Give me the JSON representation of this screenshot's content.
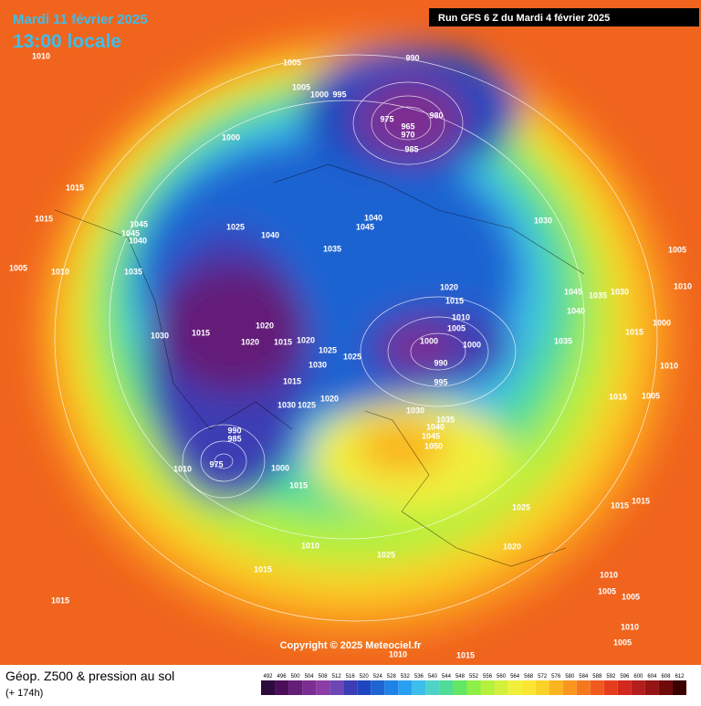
{
  "header": {
    "date": "Mardi 11 février 2025",
    "time": "13:00 locale",
    "run": "Run GFS 6 Z du Mardi 4 février 2025"
  },
  "footer": {
    "title": "Géop. Z500 & pression au sol",
    "lead": "(+ 174h)",
    "copyright": "Copyright © 2025 Meteociel.fr"
  },
  "pressure_labels": [
    1010,
    1005,
    990,
    1005,
    1000,
    995,
    975,
    965,
    980,
    970,
    985,
    1000,
    1015,
    1015,
    1045,
    1045,
    1040,
    1005,
    1010,
    1035,
    1025,
    1040,
    1035,
    1040,
    1045,
    1030,
    1005,
    1020,
    1015,
    1010,
    1005,
    1000,
    1000,
    990,
    995,
    1045,
    1035,
    1030,
    1040,
    1010,
    1000,
    1015,
    1035,
    1030,
    1015,
    1020,
    1020,
    1015,
    1020,
    1025,
    1030,
    1025,
    1015,
    1030,
    1025,
    1020,
    1030,
    1035,
    1040,
    1045,
    1050,
    990,
    985,
    975,
    1010,
    1000,
    1015,
    1015,
    1005,
    1010,
    1025,
    1015,
    1015,
    1010,
    1025,
    1020,
    1015,
    1015,
    1010,
    1005,
    1005,
    1010,
    1005,
    1010,
    1015
  ],
  "colorbar": {
    "values": [
      492,
      496,
      500,
      504,
      508,
      512,
      516,
      520,
      524,
      528,
      532,
      536,
      540,
      544,
      548,
      552,
      556,
      560,
      564,
      568,
      572,
      576,
      580,
      584,
      588,
      592,
      596,
      600,
      604,
      608,
      612
    ],
    "colors": [
      "#2d0a3c",
      "#4b0f5a",
      "#641e78",
      "#7d2d91",
      "#8c3ca5",
      "#6e46b4",
      "#3c3cb4",
      "#1e46be",
      "#1e64d2",
      "#1e82e6",
      "#28a0f0",
      "#3cbeeb",
      "#50d2c8",
      "#50dc96",
      "#64e664",
      "#8cf046",
      "#b4f03c",
      "#d2f03c",
      "#f0f03c",
      "#fae632",
      "#fad228",
      "#fab41e",
      "#fa961e",
      "#f5781e",
      "#f05a1e",
      "#e63c1e",
      "#d2281e",
      "#b41e1e",
      "#961414",
      "#6e0a0a",
      "#3c0000"
    ]
  }
}
